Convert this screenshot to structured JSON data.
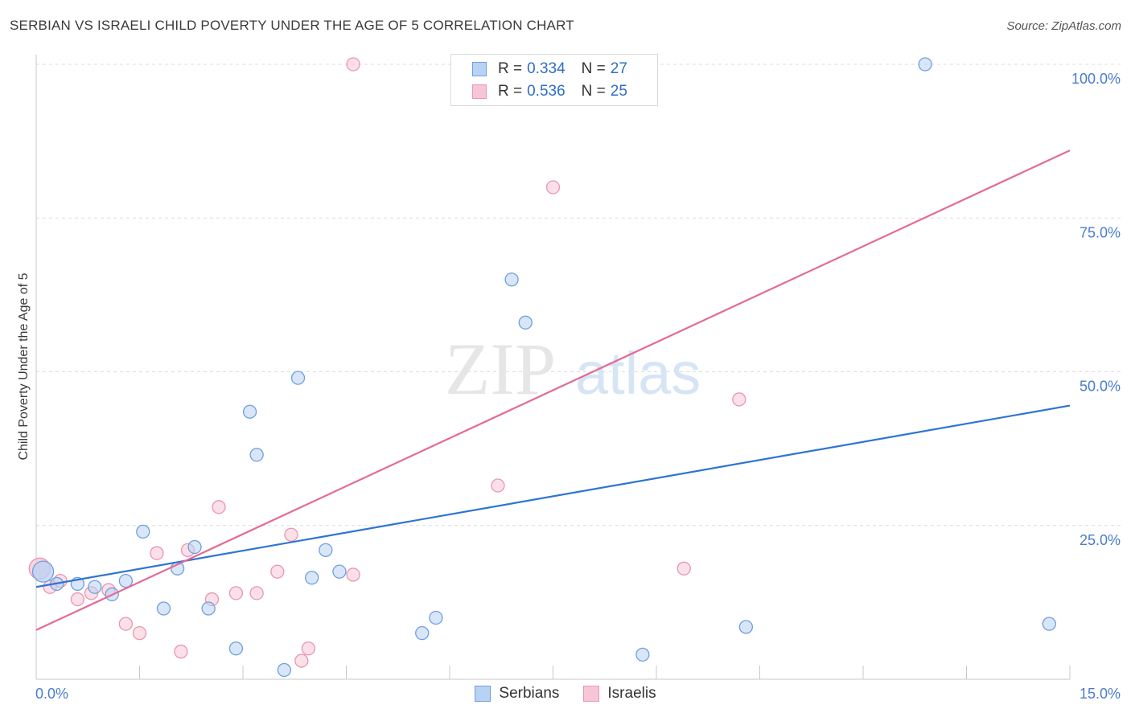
{
  "header": {
    "title": "SERBIAN VS ISRAELI CHILD POVERTY UNDER THE AGE OF 5 CORRELATION CHART",
    "source": "Source: ZipAtlas.com"
  },
  "watermark": {
    "zip": "ZIP",
    "atlas": "atlas"
  },
  "legend": {
    "serbians": {
      "r_label": "R =",
      "r_value": "0.334",
      "n_label": "N =",
      "n_value": "27"
    },
    "israelis": {
      "r_label": "R =",
      "r_value": "0.536",
      "n_label": "N =",
      "n_value": "25"
    }
  },
  "bottom_legend": {
    "serbians": "Serbians",
    "israelis": "Israelis"
  },
  "colors": {
    "serbians_fill": "#b8d2f3",
    "serbians_stroke": "#6f9fe0",
    "serbians_line": "#2e74d3",
    "israelis_fill": "#f7c6d5",
    "israelis_stroke": "#e996b1",
    "israelis_line": "#e46a94",
    "grid": "#dcdcdc",
    "tick": "#4a7ccc"
  },
  "chart_data": {
    "type": "scatter",
    "title": "SERBIAN VS ISRAELI CHILD POVERTY UNDER THE AGE OF 5 CORRELATION CHART",
    "xlabel": "",
    "ylabel": "Child Poverty Under the Age of 5",
    "xlim": [
      0,
      15
    ],
    "ylim": [
      0,
      100
    ],
    "x_tick_labels": [
      "0.0%",
      "15.0%"
    ],
    "y_ticks": [
      25,
      50,
      75,
      100
    ],
    "y_tick_labels": [
      "25.0%",
      "50.0%",
      "75.0%",
      "100.0%"
    ],
    "series": [
      {
        "name": "Serbians",
        "points": [
          [
            0.1,
            17.5
          ],
          [
            0.3,
            15.5
          ],
          [
            0.6,
            15.5
          ],
          [
            0.85,
            15.0
          ],
          [
            1.1,
            13.8
          ],
          [
            1.3,
            16.0
          ],
          [
            1.55,
            24.0
          ],
          [
            1.85,
            11.5
          ],
          [
            2.05,
            18.0
          ],
          [
            2.3,
            21.5
          ],
          [
            2.5,
            11.5
          ],
          [
            2.9,
            5.0
          ],
          [
            3.1,
            43.5
          ],
          [
            3.2,
            36.5
          ],
          [
            3.6,
            1.5
          ],
          [
            3.8,
            49.0
          ],
          [
            4.0,
            16.5
          ],
          [
            4.2,
            21.0
          ],
          [
            4.4,
            17.5
          ],
          [
            5.6,
            7.5
          ],
          [
            5.8,
            10.0
          ],
          [
            6.9,
            65.0
          ],
          [
            7.1,
            58.0
          ],
          [
            8.8,
            4.0
          ],
          [
            10.3,
            8.5
          ],
          [
            12.9,
            100.0
          ],
          [
            14.7,
            9.0
          ]
        ],
        "trend": {
          "x": [
            0,
            15
          ],
          "y": [
            15.0,
            44.5
          ]
        }
      },
      {
        "name": "Israelis",
        "points": [
          [
            0.05,
            18.0
          ],
          [
            0.35,
            16.0
          ],
          [
            0.6,
            13.0
          ],
          [
            0.8,
            14.0
          ],
          [
            1.05,
            14.5
          ],
          [
            1.3,
            9.0
          ],
          [
            1.5,
            7.5
          ],
          [
            1.75,
            20.5
          ],
          [
            2.1,
            4.5
          ],
          [
            2.2,
            21.0
          ],
          [
            2.55,
            13.0
          ],
          [
            2.65,
            28.0
          ],
          [
            2.9,
            14.0
          ],
          [
            3.2,
            14.0
          ],
          [
            3.5,
            17.5
          ],
          [
            3.7,
            23.5
          ],
          [
            3.85,
            3.0
          ],
          [
            3.95,
            5.0
          ],
          [
            4.6,
            17.0
          ],
          [
            4.6,
            100.0
          ],
          [
            6.7,
            31.5
          ],
          [
            7.5,
            80.0
          ],
          [
            9.4,
            18.0
          ],
          [
            10.2,
            45.5
          ],
          [
            0.2,
            15.0
          ]
        ],
        "trend": {
          "x": [
            0,
            15
          ],
          "y": [
            8.0,
            86.0
          ]
        }
      }
    ]
  }
}
